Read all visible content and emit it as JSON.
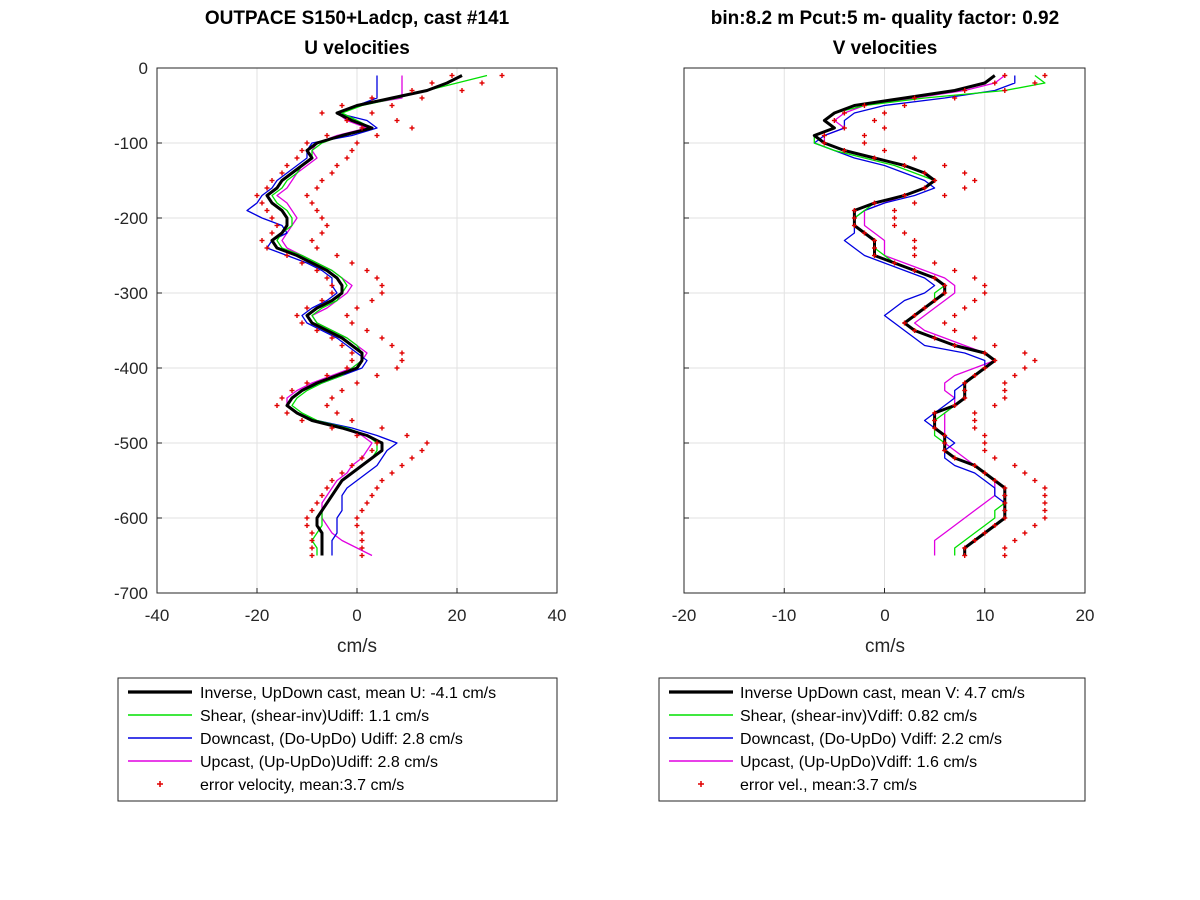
{
  "chart_data": [
    {
      "type": "line",
      "title": "OUTPACE S150+Ladcp, cast #141",
      "subtitle": "U velocities",
      "xlabel": "cm/s",
      "ylabel": "",
      "xlim": [
        -40,
        40
      ],
      "ylim": [
        -700,
        0
      ],
      "xticks": [
        "-40",
        "-20",
        "0",
        "20",
        "40"
      ],
      "yticks": [
        "0",
        "-100",
        "-200",
        "-300",
        "-400",
        "-500",
        "-600",
        "-700"
      ],
      "grid": true,
      "legend_position": "below",
      "legend": [
        "Inverse, UpDown cast, mean U:  -4.1 cm/s",
        "Shear, (shear-inv)Udiff:  1.1 cm/s",
        "Downcast, (Do-UpDo) Udiff:  2.8 cm/s",
        "Upcast, (Up-UpDo)Udiff:  2.8 cm/s",
        "error velocity, mean:3.7 cm/s"
      ],
      "depth": [
        -10,
        -20,
        -30,
        -40,
        -50,
        -60,
        -70,
        -80,
        -90,
        -100,
        -110,
        -120,
        -130,
        -140,
        -150,
        -160,
        -170,
        -180,
        -190,
        -200,
        -210,
        -220,
        -230,
        -240,
        -250,
        -260,
        -270,
        -280,
        -290,
        -300,
        -310,
        -320,
        -330,
        -340,
        -350,
        -360,
        -370,
        -380,
        -390,
        -400,
        -410,
        -420,
        -430,
        -440,
        -450,
        -460,
        -470,
        -480,
        -490,
        -500,
        -510,
        -520,
        -530,
        -540,
        -550,
        -560,
        -570,
        -580,
        -590,
        -600,
        -610,
        -620,
        -630,
        -640,
        -650
      ],
      "series": [
        {
          "name": "Inverse",
          "color": "#000000",
          "values": [
            21,
            18,
            14,
            7,
            0,
            -4,
            -1,
            3,
            -3,
            -8,
            -10,
            -9,
            -11,
            -13,
            -15,
            -16,
            -18,
            -17,
            -15,
            -14,
            -14,
            -15,
            -17,
            -16,
            -12,
            -9,
            -6,
            -4,
            -3,
            -3,
            -5,
            -8,
            -10,
            -9,
            -6,
            -3,
            -1,
            1,
            1,
            0,
            -4,
            -8,
            -11,
            -13,
            -14,
            -12,
            -9,
            -3,
            2,
            5,
            5,
            3,
            1,
            -1,
            -3,
            -4,
            -5,
            -6,
            -7,
            -8,
            -8,
            -7,
            -7,
            -7,
            -7
          ]
        },
        {
          "name": "Shear",
          "color": "#00e000",
          "values": [
            26,
            20,
            14,
            8,
            1,
            -3,
            0,
            3,
            -3,
            -7,
            -9,
            -9,
            -11,
            -12,
            -14,
            -15,
            -17,
            -16,
            -14,
            -13,
            -13,
            -15,
            -16,
            -15,
            -11,
            -8,
            -5,
            -3,
            -2,
            -3,
            -4,
            -7,
            -9,
            -8,
            -5,
            -2,
            0,
            1,
            1,
            -1,
            -3,
            -7,
            -10,
            -12,
            -13,
            -11,
            -8,
            -2,
            2,
            4,
            4,
            3,
            1,
            -1,
            -3,
            -4,
            -5,
            -6,
            -7,
            -7,
            -7,
            -8,
            -9,
            -8,
            -8
          ]
        },
        {
          "name": "Downcast",
          "color": "#0000e0",
          "values": [
            4,
            4,
            4,
            4,
            0,
            -4,
            2,
            4,
            -1,
            -9,
            -10,
            -10,
            -12,
            -14,
            -16,
            -17,
            -19,
            -20,
            -22,
            -19,
            -15,
            -14,
            -17,
            -18,
            -14,
            -10,
            -7,
            -5,
            -5,
            -4,
            -6,
            -9,
            -11,
            -10,
            -7,
            -4,
            -2,
            0,
            2,
            1,
            -3,
            -7,
            -11,
            -13,
            -14,
            -12,
            -8,
            -1,
            4,
            8,
            6,
            5,
            4,
            2,
            0,
            -2,
            -3,
            -3,
            -3,
            -4,
            -4,
            -4,
            -5,
            -5,
            -5
          ]
        },
        {
          "name": "Upcast",
          "color": "#e000e0",
          "values": [
            9,
            9,
            9,
            9,
            0,
            -4,
            -2,
            2,
            -4,
            -8,
            -9,
            -8,
            -10,
            -12,
            -13,
            -14,
            -16,
            -14,
            -13,
            -12,
            -13,
            -14,
            -15,
            -14,
            -11,
            -8,
            -5,
            -3,
            -1,
            -2,
            -4,
            -6,
            -9,
            -8,
            -5,
            -2,
            0,
            2,
            1,
            -1,
            -5,
            -9,
            -12,
            -14,
            -14,
            -12,
            -9,
            -3,
            1,
            3,
            2,
            1,
            -1,
            -2,
            -4,
            -5,
            -6,
            -7,
            -7,
            -7,
            -6,
            -5,
            -3,
            0,
            3
          ]
        },
        {
          "name": "error velocity",
          "color": "#e00000",
          "marker": "+",
          "values": [
            24,
            20,
            16,
            8,
            2,
            -2,
            3,
            6,
            -1,
            -5,
            -6,
            -7,
            -9,
            -10,
            -12,
            -13,
            -15,
            -14,
            -13,
            -12,
            -11,
            -12,
            -14,
            -13,
            -9,
            -6,
            -3,
            -1,
            0,
            0,
            -2,
            -5,
            -7,
            -6,
            -3,
            0,
            2,
            4,
            4,
            3,
            -1,
            -5,
            -8,
            -10,
            -11,
            -9,
            -6,
            0,
            5,
            9,
            8,
            6,
            4,
            2,
            0,
            -1,
            -2,
            -3,
            -4,
            -5,
            -5,
            -4,
            -4,
            -4,
            -4
          ]
        }
      ]
    },
    {
      "type": "line",
      "title": "bin:8.2 m  Pcut:5 m- quality factor:  0.92",
      "subtitle": "V velocities",
      "xlabel": "cm/s",
      "ylabel": "",
      "xlim": [
        -20,
        20
      ],
      "ylim": [
        -700,
        0
      ],
      "xticks": [
        "-20",
        "-10",
        "0",
        "10",
        "20"
      ],
      "grid": true,
      "legend_position": "below",
      "legend": [
        "Inverse UpDown cast, mean V:  4.7 cm/s",
        "Shear, (shear-inv)Vdiff:  0.82 cm/s",
        "Downcast, (Do-UpDo) Vdiff:  2.2 cm/s",
        "Upcast, (Up-UpDo)Vdiff:  1.6 cm/s",
        "error vel., mean:3.7 cm/s"
      ],
      "depth": [
        -10,
        -20,
        -30,
        -40,
        -50,
        -60,
        -70,
        -80,
        -90,
        -100,
        -110,
        -120,
        -130,
        -140,
        -150,
        -160,
        -170,
        -180,
        -190,
        -200,
        -210,
        -220,
        -230,
        -240,
        -250,
        -260,
        -270,
        -280,
        -290,
        -300,
        -310,
        -320,
        -330,
        -340,
        -350,
        -360,
        -370,
        -380,
        -390,
        -400,
        -410,
        -420,
        -430,
        -440,
        -450,
        -460,
        -470,
        -480,
        -490,
        -500,
        -510,
        -520,
        -530,
        -540,
        -550,
        -560,
        -570,
        -580,
        -590,
        -600,
        -610,
        -620,
        -630,
        -640,
        -650
      ],
      "series": [
        {
          "name": "Inverse",
          "color": "#000000",
          "values": [
            11,
            10,
            7,
            2,
            -3,
            -5,
            -6,
            -5,
            -7,
            -6,
            -4,
            -1,
            2,
            4,
            5,
            4,
            2,
            -1,
            -3,
            -3,
            -3,
            -2,
            -1,
            -1,
            -1,
            1,
            3,
            5,
            6,
            6,
            5,
            4,
            3,
            2,
            3,
            5,
            7,
            10,
            11,
            10,
            9,
            8,
            8,
            8,
            7,
            5,
            5,
            5,
            6,
            6,
            6,
            7,
            9,
            10,
            11,
            12,
            12,
            12,
            12,
            12,
            11,
            10,
            9,
            8,
            8
          ]
        },
        {
          "name": "Shear",
          "color": "#00e000",
          "values": [
            15,
            16,
            12,
            4,
            -2,
            -5,
            -6,
            -5,
            -7,
            -7,
            -5,
            -2,
            1,
            3,
            5,
            4,
            2,
            -1,
            -2,
            -3,
            -3,
            -2,
            -1,
            -1,
            0,
            1,
            3,
            5,
            6,
            5,
            5,
            4,
            3,
            2,
            3,
            5,
            7,
            10,
            11,
            10,
            9,
            8,
            8,
            8,
            7,
            6,
            5,
            5,
            5,
            6,
            6,
            7,
            9,
            10,
            11,
            12,
            12,
            12,
            11,
            11,
            10,
            9,
            8,
            7,
            7
          ]
        },
        {
          "name": "Downcast",
          "color": "#0000e0",
          "values": [
            13,
            13,
            11,
            6,
            0,
            -3,
            -4,
            -4,
            -6,
            -7,
            -5,
            -3,
            0,
            2,
            4,
            5,
            3,
            0,
            -2,
            -3,
            -3,
            -3,
            -4,
            -3,
            -2,
            0,
            2,
            4,
            5,
            4,
            2,
            1,
            0,
            1,
            2,
            3,
            4,
            8,
            10,
            10,
            9,
            8,
            7,
            7,
            6,
            5,
            4,
            5,
            6,
            7,
            6,
            6,
            7,
            9,
            10,
            11,
            11,
            12,
            12,
            12,
            11,
            10,
            9,
            8,
            8
          ]
        },
        {
          "name": "Upcast",
          "color": "#e000e0",
          "values": [
            12,
            11,
            8,
            3,
            -2,
            -4,
            -5,
            -4,
            -6,
            -6,
            -4,
            -1,
            2,
            4,
            5,
            4,
            2,
            0,
            -2,
            -2,
            -2,
            -1,
            0,
            0,
            0,
            2,
            4,
            6,
            7,
            7,
            6,
            5,
            4,
            3,
            4,
            6,
            8,
            10,
            11,
            9,
            7,
            6,
            6,
            7,
            7,
            6,
            6,
            6,
            6,
            6,
            7,
            8,
            9,
            10,
            11,
            11,
            11,
            10,
            9,
            8,
            7,
            6,
            5,
            5,
            5
          ]
        },
        {
          "name": "error vel.",
          "color": "#e00000",
          "marker": "+",
          "values": [
            14,
            13,
            10,
            5,
            0,
            -2,
            -3,
            -2,
            -4,
            -4,
            -2,
            1,
            4,
            6,
            7,
            6,
            4,
            1,
            -1,
            -1,
            -1,
            0,
            1,
            1,
            1,
            3,
            5,
            7,
            8,
            8,
            7,
            6,
            5,
            4,
            5,
            7,
            9,
            12,
            13,
            12,
            11,
            10,
            10,
            10,
            9,
            7,
            7,
            7,
            8,
            8,
            8,
            9,
            11,
            12,
            13,
            14,
            14,
            14,
            14,
            14,
            13,
            12,
            11,
            10,
            10
          ]
        }
      ]
    }
  ]
}
